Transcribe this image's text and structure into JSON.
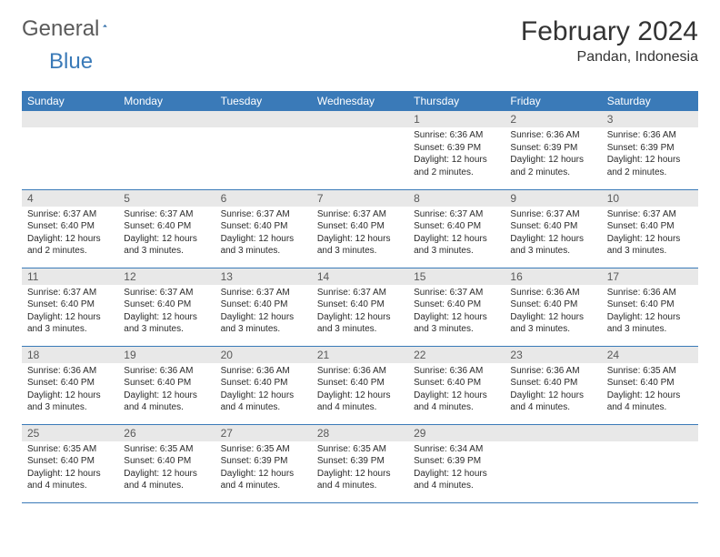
{
  "brand": {
    "general": "General",
    "blue": "Blue"
  },
  "header": {
    "month_title": "February 2024",
    "location": "Pandan, Indonesia"
  },
  "colors": {
    "header_bg": "#3a7ab8",
    "header_text": "#ffffff",
    "daynum_bg": "#e8e8e8",
    "daynum_text": "#595959",
    "rule": "#3a7ab8",
    "body_text": "#2a2a2a",
    "page_bg": "#ffffff"
  },
  "weekdays": [
    "Sunday",
    "Monday",
    "Tuesday",
    "Wednesday",
    "Thursday",
    "Friday",
    "Saturday"
  ],
  "blanks_before": 4,
  "days": [
    {
      "num": "1",
      "sunrise": "6:36 AM",
      "sunset": "6:39 PM",
      "daylight": "12 hours and 2 minutes."
    },
    {
      "num": "2",
      "sunrise": "6:36 AM",
      "sunset": "6:39 PM",
      "daylight": "12 hours and 2 minutes."
    },
    {
      "num": "3",
      "sunrise": "6:36 AM",
      "sunset": "6:39 PM",
      "daylight": "12 hours and 2 minutes."
    },
    {
      "num": "4",
      "sunrise": "6:37 AM",
      "sunset": "6:40 PM",
      "daylight": "12 hours and 2 minutes."
    },
    {
      "num": "5",
      "sunrise": "6:37 AM",
      "sunset": "6:40 PM",
      "daylight": "12 hours and 3 minutes."
    },
    {
      "num": "6",
      "sunrise": "6:37 AM",
      "sunset": "6:40 PM",
      "daylight": "12 hours and 3 minutes."
    },
    {
      "num": "7",
      "sunrise": "6:37 AM",
      "sunset": "6:40 PM",
      "daylight": "12 hours and 3 minutes."
    },
    {
      "num": "8",
      "sunrise": "6:37 AM",
      "sunset": "6:40 PM",
      "daylight": "12 hours and 3 minutes."
    },
    {
      "num": "9",
      "sunrise": "6:37 AM",
      "sunset": "6:40 PM",
      "daylight": "12 hours and 3 minutes."
    },
    {
      "num": "10",
      "sunrise": "6:37 AM",
      "sunset": "6:40 PM",
      "daylight": "12 hours and 3 minutes."
    },
    {
      "num": "11",
      "sunrise": "6:37 AM",
      "sunset": "6:40 PM",
      "daylight": "12 hours and 3 minutes."
    },
    {
      "num": "12",
      "sunrise": "6:37 AM",
      "sunset": "6:40 PM",
      "daylight": "12 hours and 3 minutes."
    },
    {
      "num": "13",
      "sunrise": "6:37 AM",
      "sunset": "6:40 PM",
      "daylight": "12 hours and 3 minutes."
    },
    {
      "num": "14",
      "sunrise": "6:37 AM",
      "sunset": "6:40 PM",
      "daylight": "12 hours and 3 minutes."
    },
    {
      "num": "15",
      "sunrise": "6:37 AM",
      "sunset": "6:40 PM",
      "daylight": "12 hours and 3 minutes."
    },
    {
      "num": "16",
      "sunrise": "6:36 AM",
      "sunset": "6:40 PM",
      "daylight": "12 hours and 3 minutes."
    },
    {
      "num": "17",
      "sunrise": "6:36 AM",
      "sunset": "6:40 PM",
      "daylight": "12 hours and 3 minutes."
    },
    {
      "num": "18",
      "sunrise": "6:36 AM",
      "sunset": "6:40 PM",
      "daylight": "12 hours and 3 minutes."
    },
    {
      "num": "19",
      "sunrise": "6:36 AM",
      "sunset": "6:40 PM",
      "daylight": "12 hours and 4 minutes."
    },
    {
      "num": "20",
      "sunrise": "6:36 AM",
      "sunset": "6:40 PM",
      "daylight": "12 hours and 4 minutes."
    },
    {
      "num": "21",
      "sunrise": "6:36 AM",
      "sunset": "6:40 PM",
      "daylight": "12 hours and 4 minutes."
    },
    {
      "num": "22",
      "sunrise": "6:36 AM",
      "sunset": "6:40 PM",
      "daylight": "12 hours and 4 minutes."
    },
    {
      "num": "23",
      "sunrise": "6:36 AM",
      "sunset": "6:40 PM",
      "daylight": "12 hours and 4 minutes."
    },
    {
      "num": "24",
      "sunrise": "6:35 AM",
      "sunset": "6:40 PM",
      "daylight": "12 hours and 4 minutes."
    },
    {
      "num": "25",
      "sunrise": "6:35 AM",
      "sunset": "6:40 PM",
      "daylight": "12 hours and 4 minutes."
    },
    {
      "num": "26",
      "sunrise": "6:35 AM",
      "sunset": "6:40 PM",
      "daylight": "12 hours and 4 minutes."
    },
    {
      "num": "27",
      "sunrise": "6:35 AM",
      "sunset": "6:39 PM",
      "daylight": "12 hours and 4 minutes."
    },
    {
      "num": "28",
      "sunrise": "6:35 AM",
      "sunset": "6:39 PM",
      "daylight": "12 hours and 4 minutes."
    },
    {
      "num": "29",
      "sunrise": "6:34 AM",
      "sunset": "6:39 PM",
      "daylight": "12 hours and 4 minutes."
    }
  ],
  "labels": {
    "sunrise": "Sunrise: ",
    "sunset": "Sunset: ",
    "daylight": "Daylight: "
  }
}
